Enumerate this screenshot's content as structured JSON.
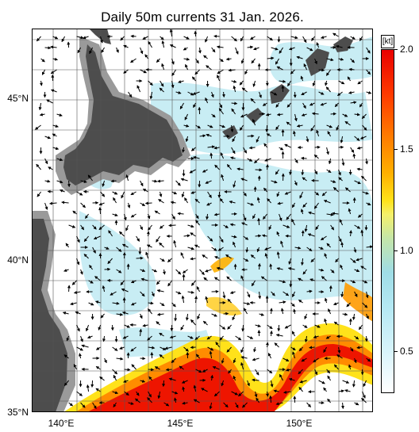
{
  "title": "Daily 50m currents 31  Jan. 2026.",
  "axes": {
    "lat_labels": [
      "45°N",
      "40°N",
      "35°N"
    ],
    "lon_labels": [
      "140°E",
      "145°E",
      "150°E"
    ]
  },
  "colorbar": {
    "unit": "[kt]",
    "ticks": [
      "2.0",
      "1.5",
      "1.0",
      "0.5"
    ],
    "colors": [
      "#ffffff",
      "#b4e8f3",
      "#ffe21a",
      "#ff7a00",
      "#e80000"
    ]
  },
  "map": {
    "land_color": "#4d4d4d",
    "shelf_color": "#9a9a9a",
    "grid_color": "#555555"
  }
}
